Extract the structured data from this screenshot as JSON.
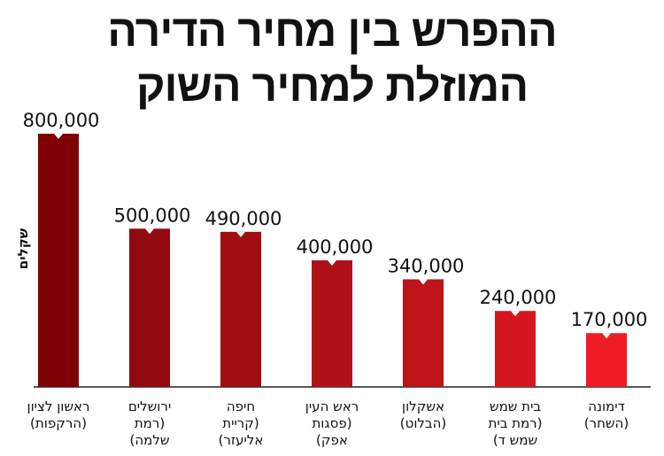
{
  "chart_data": {
    "type": "bar",
    "title": [
      "ההפרש בין מחיר הדירה",
      "המוזלת למחיר השוק"
    ],
    "ylabel": "שקלים",
    "categories": [
      [
        "ראשון לציון",
        "(הרקפות)"
      ],
      [
        "ירושלים",
        "(רמת",
        "שלמה)"
      ],
      [
        "חיפה",
        "(קריית",
        "אליעזר)"
      ],
      [
        "ראש העין",
        "(פסגות",
        "אפק)"
      ],
      [
        "אשקלון",
        "(הבלוט)"
      ],
      [
        "בית שמש",
        "(רמת בית",
        "שמש ד)"
      ],
      [
        "דימונה",
        "(השחר)"
      ]
    ],
    "values": [
      800000,
      500000,
      490000,
      400000,
      340000,
      240000,
      170000
    ],
    "value_labels": [
      "800,000",
      "500,000",
      "490,000",
      "400,000",
      "340,000",
      "240,000",
      "170,000"
    ],
    "bar_colors": [
      "#7f0005",
      "#910a0f",
      "#a10d13",
      "#ae1117",
      "#bd1319",
      "#d6161e",
      "#ee1c25"
    ],
    "ylim": [
      0,
      800000
    ],
    "grid": false,
    "legend": "none"
  }
}
